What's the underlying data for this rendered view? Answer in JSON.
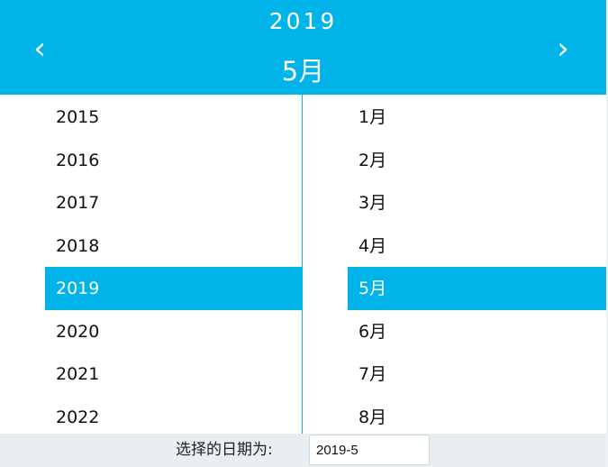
{
  "header": {
    "year": "2019",
    "month": "5月",
    "prev_icon": "chevron-left-icon",
    "next_icon": "chevron-right-icon",
    "prev_glyph": "‹",
    "next_glyph": "›"
  },
  "years": [
    "2015",
    "2016",
    "2017",
    "2018",
    "2019",
    "2020",
    "2021",
    "2022"
  ],
  "selected_year_index": 4,
  "months": [
    "1月",
    "2月",
    "3月",
    "4月",
    "5月",
    "6月",
    "7月",
    "8月"
  ],
  "selected_month_index": 4,
  "footer": {
    "label": "选择的日期为:",
    "value": "2019-5"
  },
  "colors": {
    "accent": "#00b4ea",
    "footer_bg": "#e9eef2",
    "text": "#111111",
    "selected_text": "#ffffff"
  }
}
